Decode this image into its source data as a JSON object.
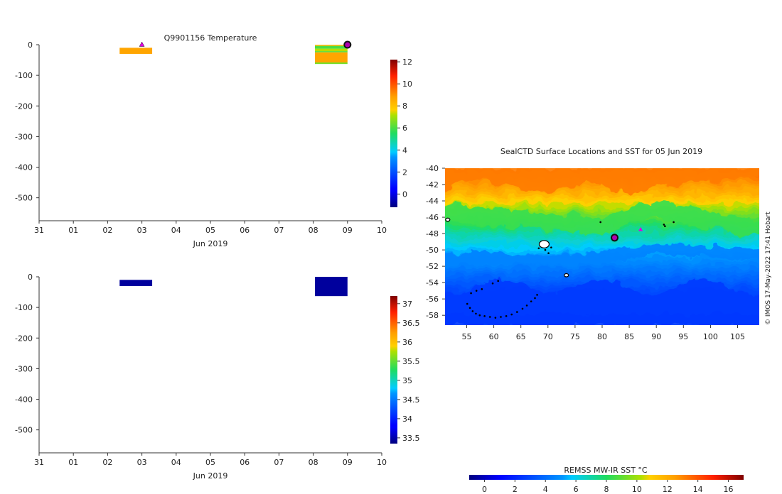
{
  "chart_data": [
    {
      "type": "heatmap",
      "title": "Q9901156  Temperature",
      "xlabel": "Jun 2019",
      "ylabel": "",
      "x_tick_labels": [
        "31",
        "01",
        "02",
        "03",
        "04",
        "05",
        "06",
        "07",
        "08",
        "09",
        "10"
      ],
      "x_range_days": [
        0,
        10
      ],
      "ylim": [
        -575,
        0
      ],
      "y_ticks": [
        0,
        -100,
        -200,
        -300,
        -400,
        -500
      ],
      "colorbar": {
        "min": -1.2,
        "max": 12.2,
        "ticks": [
          0,
          2,
          4,
          6,
          8,
          10,
          12
        ]
      },
      "profiles": [
        {
          "day_start": 2.35,
          "day_end": 3.3,
          "layers": [
            {
              "top": -10,
              "bottom": -30,
              "value": 8.7
            }
          ]
        },
        {
          "day_start": 8.05,
          "day_end": 9.0,
          "layers": [
            {
              "top": 0,
              "bottom": -4,
              "value": 8.2
            },
            {
              "top": -4,
              "bottom": -13,
              "value": 6.0
            },
            {
              "top": -13,
              "bottom": -21,
              "value": 7.2
            },
            {
              "top": -21,
              "bottom": -25,
              "value": 6.2
            },
            {
              "top": -25,
              "bottom": -58,
              "value": 8.7
            },
            {
              "top": -58,
              "bottom": -63,
              "value": 6.5
            }
          ]
        }
      ],
      "markers": [
        {
          "day": 3.0,
          "depth": 0,
          "kind": "triangle",
          "color": "#e000e0"
        },
        {
          "day": 9.0,
          "depth": 0,
          "kind": "dot",
          "color": "#b000b0"
        }
      ]
    },
    {
      "type": "heatmap",
      "title": "",
      "xlabel": "Jun 2019",
      "ylabel": "",
      "x_tick_labels": [
        "31",
        "01",
        "02",
        "03",
        "04",
        "05",
        "06",
        "07",
        "08",
        "09",
        "10"
      ],
      "x_range_days": [
        0,
        10
      ],
      "ylim": [
        -575,
        0
      ],
      "y_ticks": [
        0,
        -100,
        -200,
        -300,
        -400,
        -500
      ],
      "colorbar": {
        "min": 33.35,
        "max": 37.2,
        "ticks": [
          33.5,
          34,
          34.5,
          35,
          35.5,
          36,
          36.5,
          37
        ],
        "tick_labels": [
          "33.5",
          "34",
          "34.5",
          "35",
          "35.5",
          "36",
          "36.5",
          "37"
        ]
      },
      "profiles": [
        {
          "day_start": 2.35,
          "day_end": 3.3,
          "layers": [
            {
              "top": -10,
              "bottom": -30,
              "value": 33.45
            }
          ]
        },
        {
          "day_start": 8.05,
          "day_end": 9.0,
          "layers": [
            {
              "top": 0,
              "bottom": -63,
              "value": 33.45
            }
          ]
        }
      ]
    },
    {
      "type": "heatmap",
      "title": "SealCTD Surface Locations and SST for 05 Jun 2019",
      "xlabel": "",
      "ylabel": "",
      "xlim": [
        51,
        109
      ],
      "ylim": [
        -59.2,
        -40
      ],
      "x_ticks": [
        55,
        60,
        65,
        70,
        75,
        80,
        85,
        90,
        95,
        100,
        105
      ],
      "y_ticks": [
        -40,
        -42,
        -44,
        -46,
        -48,
        -50,
        -52,
        -54,
        -56,
        -58
      ],
      "sst_field": {
        "description": "sea surface temperature field, warm north to cold south",
        "lat_knots": [
          -40,
          -43,
          -46,
          -48,
          -51,
          -55,
          -59.2
        ],
        "sst_knots": [
          13.8,
          12.0,
          9.0,
          7.0,
          5.0,
          3.0,
          2.0
        ],
        "front_lat_by_lon": [
          [
            51,
            -44.8
          ],
          [
            60,
            -45.3
          ],
          [
            70,
            -46.0
          ],
          [
            80,
            -46.5
          ],
          [
            85,
            -45.2
          ],
          [
            90,
            -44.3
          ],
          [
            100,
            -45.8
          ],
          [
            109,
            -46.8
          ]
        ],
        "warm_lat_by_lon": [
          [
            51,
            -42.8
          ],
          [
            56,
            -41.2
          ],
          [
            60,
            -41.8
          ],
          [
            66,
            -42.6
          ],
          [
            70,
            -42.8
          ],
          [
            78,
            -41.6
          ],
          [
            85,
            -43.3
          ],
          [
            92,
            -42.0
          ],
          [
            100,
            -41.6
          ],
          [
            105,
            -41.0
          ],
          [
            109,
            -40.7
          ]
        ],
        "cold_lat_by_lon": [
          [
            51,
            -50.6
          ],
          [
            60,
            -50.3
          ],
          [
            70,
            -50.7
          ],
          [
            80,
            -50.4
          ],
          [
            90,
            -49.2
          ],
          [
            100,
            -49.6
          ],
          [
            109,
            -50.0
          ]
        ]
      },
      "land": [
        {
          "name": "Crozet",
          "lon": 51.5,
          "lat": -46.3
        },
        {
          "name": "Kerguelen",
          "lon": 69.3,
          "lat": -49.3
        },
        {
          "name": "Heard",
          "lon": 73.4,
          "lat": -53.1
        }
      ],
      "track": [
        [
          79.7,
          -46.6
        ],
        [
          91.4,
          -46.9
        ],
        [
          91.6,
          -47.1
        ],
        [
          93.2,
          -46.6
        ],
        [
          55.1,
          -56.6
        ],
        [
          55.6,
          -57.1
        ],
        [
          56.1,
          -57.5
        ],
        [
          56.7,
          -57.8
        ],
        [
          57.4,
          -58.0
        ],
        [
          58.3,
          -58.1
        ],
        [
          59.3,
          -58.2
        ],
        [
          60.3,
          -58.3
        ],
        [
          61.3,
          -58.2
        ],
        [
          62.3,
          -58.1
        ],
        [
          63.3,
          -57.9
        ],
        [
          64.3,
          -57.6
        ],
        [
          65.3,
          -57.2
        ],
        [
          66.1,
          -56.8
        ],
        [
          66.9,
          -56.3
        ],
        [
          67.6,
          -55.9
        ],
        [
          68.0,
          -55.5
        ],
        [
          55.8,
          -55.3
        ],
        [
          56.8,
          -55.0
        ],
        [
          57.8,
          -54.8
        ],
        [
          59.8,
          -54.1
        ],
        [
          60.8,
          -53.8
        ],
        [
          68.3,
          -49.8
        ],
        [
          69.5,
          -50.0
        ],
        [
          70.6,
          -49.7
        ],
        [
          70.1,
          -50.4
        ]
      ],
      "markers": [
        {
          "lon": 82.3,
          "lat": -48.5,
          "kind": "dot",
          "color": "#b000b0"
        },
        {
          "lon": 87.1,
          "lat": -47.5,
          "kind": "triangle",
          "color": "#e000e0"
        }
      ],
      "colorbar": {
        "label": "REMSS MW-IR SST °C",
        "min": -1,
        "max": 17,
        "ticks": [
          0,
          2,
          4,
          6,
          8,
          10,
          12,
          14,
          16
        ]
      },
      "credit": "© IMOS 17-May-2022 17:41 Hobart"
    }
  ]
}
